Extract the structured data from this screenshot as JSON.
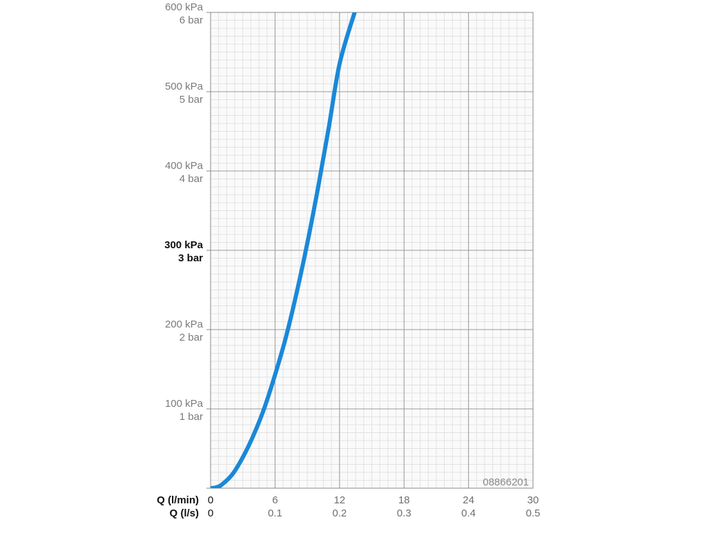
{
  "chart_data": {
    "type": "line",
    "title": "",
    "code": "08866201",
    "x_axes": [
      {
        "label": "Q (l/min)",
        "ticks": [
          "0",
          "6",
          "12",
          "18",
          "24",
          "30"
        ],
        "range": [
          0,
          30
        ]
      },
      {
        "label": "Q (l/s)",
        "ticks": [
          "0",
          "0.1",
          "0.2",
          "0.3",
          "0.4",
          "0.5"
        ],
        "range": [
          0,
          0.5
        ]
      }
    ],
    "y_axis": {
      "range": [
        0,
        600
      ],
      "unit": "kPa",
      "ticks": [
        {
          "kpa": "600 kPa",
          "bar": "6 bar",
          "value": 600,
          "bold": false
        },
        {
          "kpa": "500 kPa",
          "bar": "5 bar",
          "value": 500,
          "bold": false
        },
        {
          "kpa": "400 kPa",
          "bar": "4 bar",
          "value": 400,
          "bold": false
        },
        {
          "kpa": "300 kPa",
          "bar": "3 bar",
          "value": 300,
          "bold": true
        },
        {
          "kpa": "200 kPa",
          "bar": "2 bar",
          "value": 200,
          "bold": false
        },
        {
          "kpa": "100 kPa",
          "bar": "1 bar",
          "value": 100,
          "bold": false
        }
      ]
    },
    "grid": true,
    "series": [
      {
        "color": "#1a88d8",
        "x": [
          0,
          0.5,
          1,
          2,
          3,
          4,
          5,
          6,
          7,
          8,
          9,
          10,
          11,
          12,
          13.4
        ],
        "y": [
          0,
          1,
          4,
          17,
          39,
          67,
          101,
          143,
          190,
          246,
          309,
          379,
          455,
          535,
          600
        ]
      }
    ]
  }
}
